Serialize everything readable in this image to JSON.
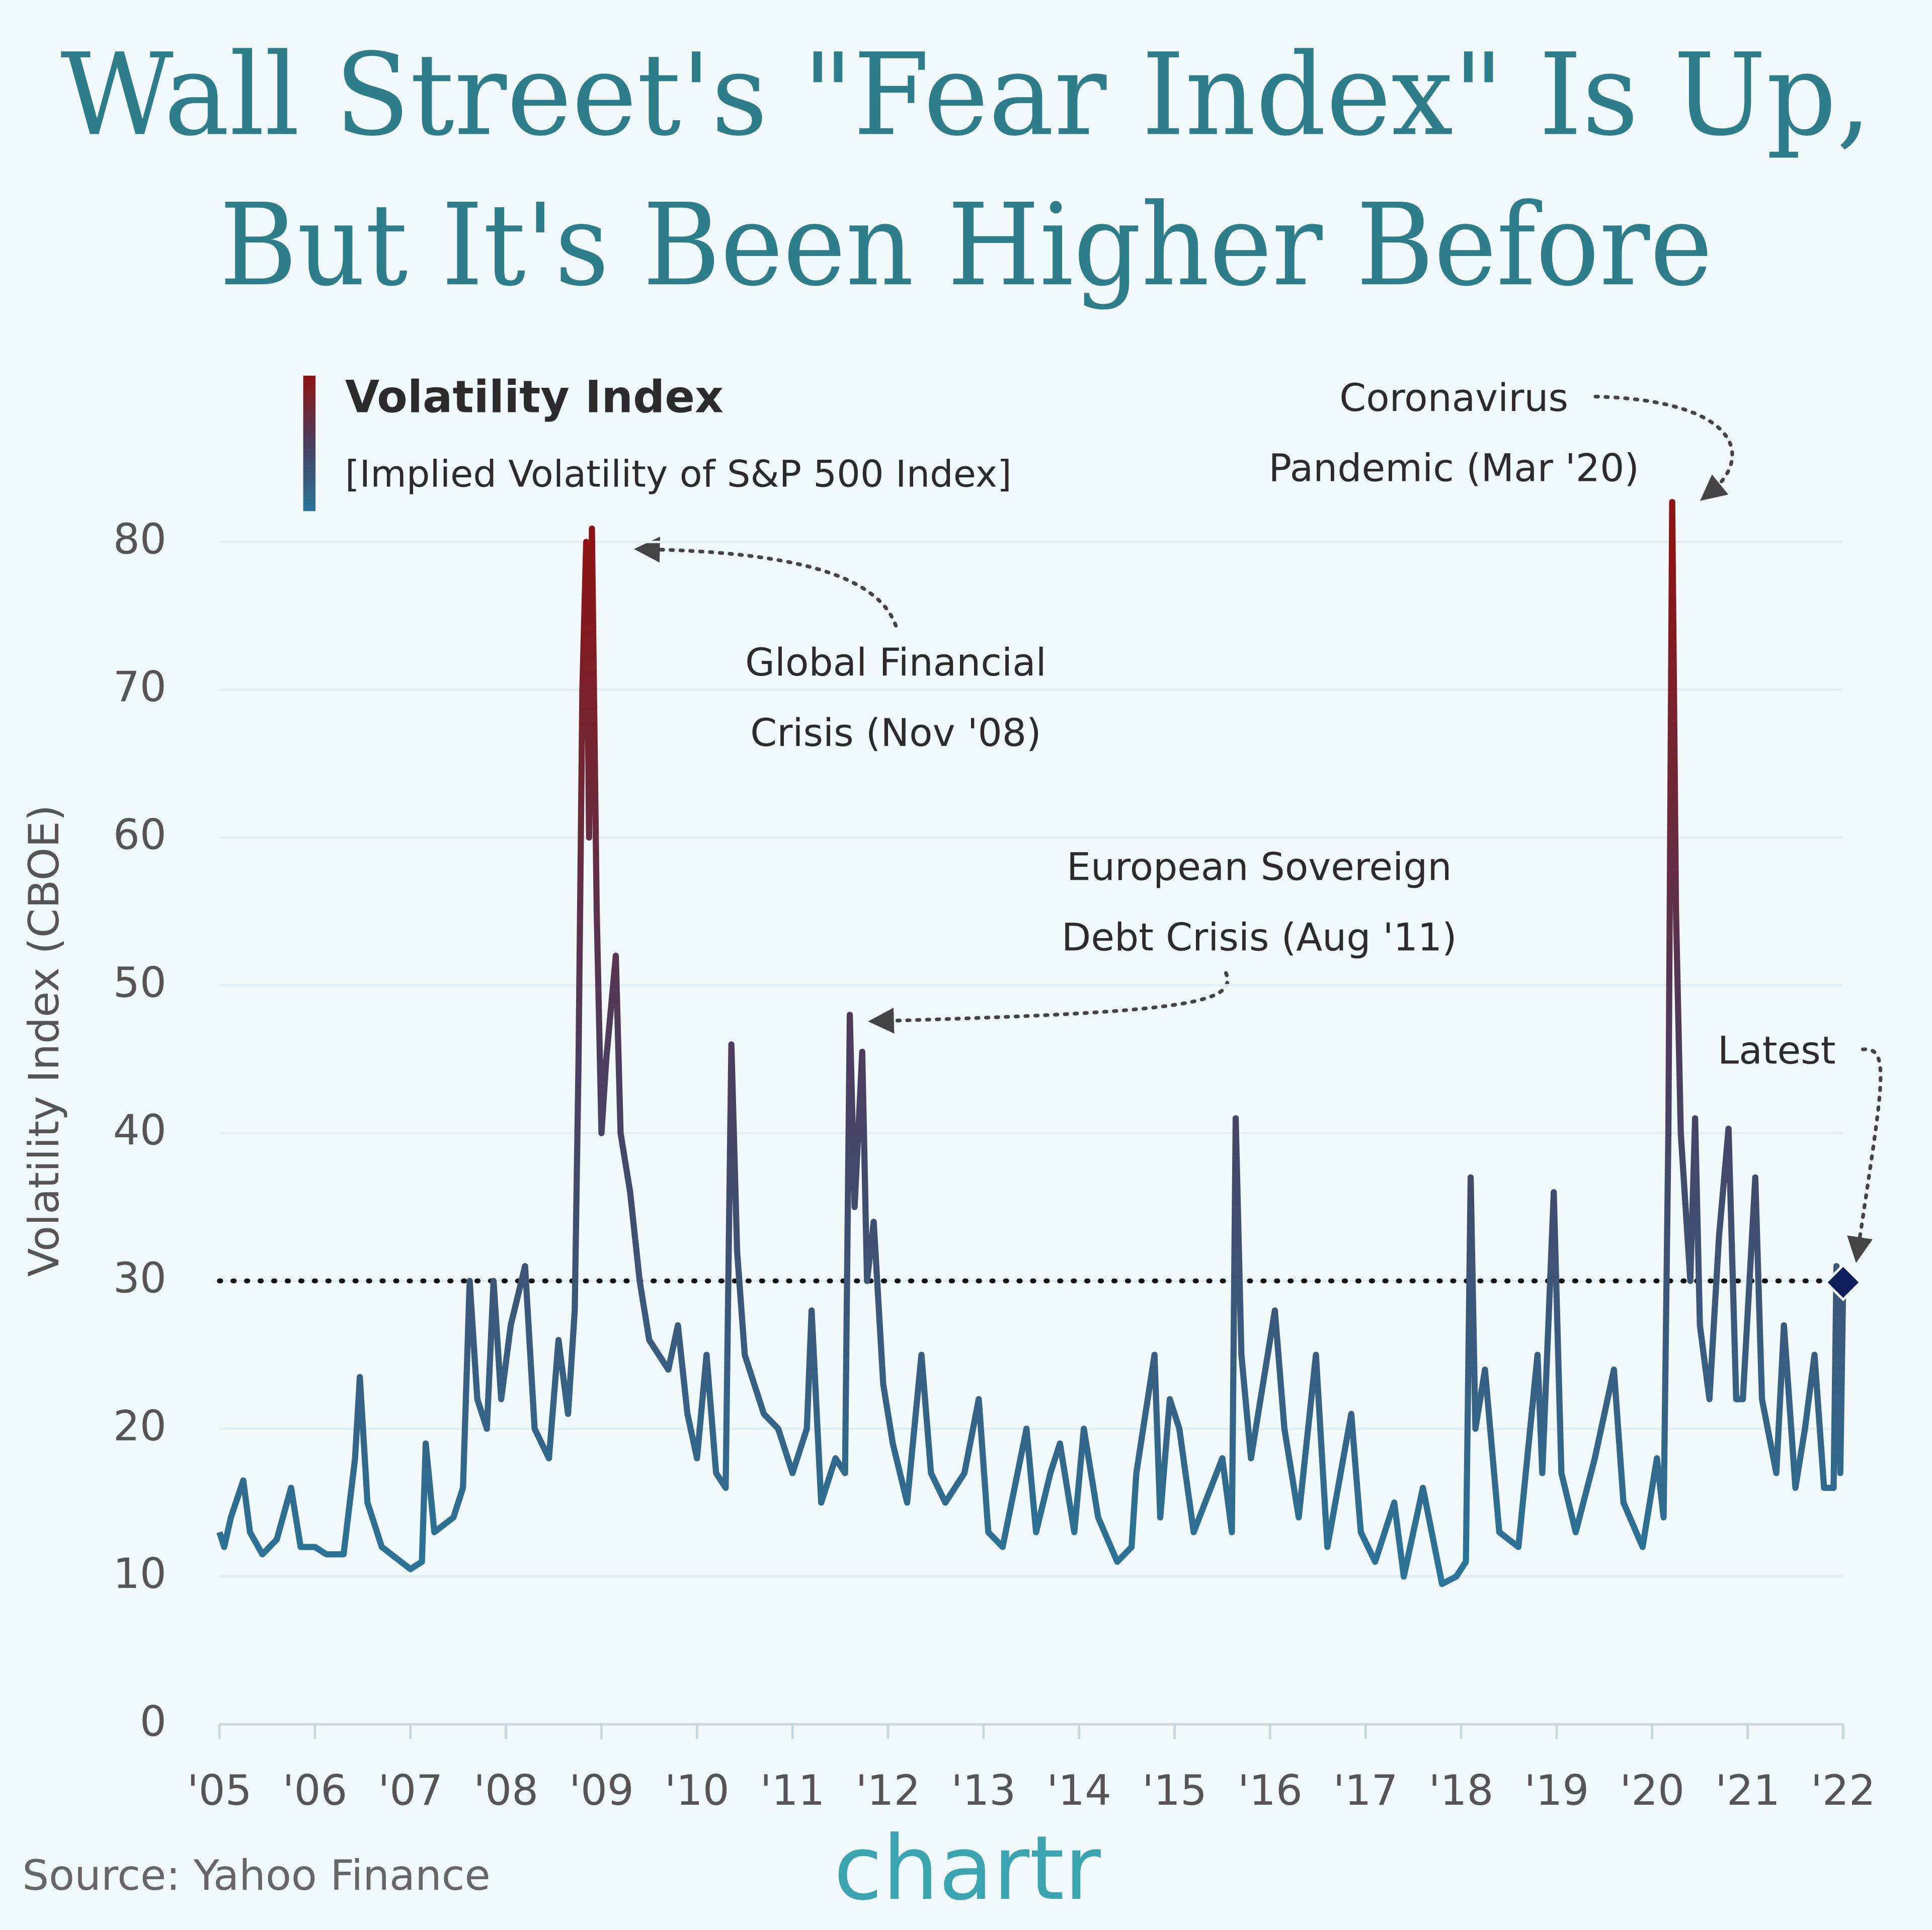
{
  "chart_data": {
    "type": "line",
    "title": [
      "Wall Street's \"Fear Index\" Is Up,",
      "But It's Been Higher Before"
    ],
    "y_label": "Volatility Index (CBOE)",
    "legend_subtitle": "[Implied Volatility of S&P 500 Index]",
    "source": "Source: Yahoo Finance",
    "logo": "chartr",
    "gradient_colors": [
      "#8e1414",
      "#4b3d5e",
      "#2a7599"
    ],
    "reference_line": 30,
    "latest": {
      "x": 2022.0,
      "value": 29.9,
      "color": "#0f1f5c"
    },
    "annotations": [
      {
        "lines": [
          "Global Financial",
          "Crisis (Nov '08)"
        ]
      },
      {
        "lines": [
          "Coronavirus",
          "Pandemic (Mar '20)"
        ]
      },
      {
        "lines": [
          "European Sovereign",
          "Debt Crisis (Aug '11)"
        ]
      },
      {
        "lines": [
          "Latest"
        ]
      }
    ],
    "xlim": [
      2005,
      2022
    ],
    "xticks": [
      {
        "value": 2005,
        "label": "'05"
      },
      {
        "value": 2006,
        "label": "'06"
      },
      {
        "value": 2007,
        "label": "'07"
      },
      {
        "value": 2008,
        "label": "'08"
      },
      {
        "value": 2009,
        "label": "'09"
      },
      {
        "value": 2010,
        "label": "'10"
      },
      {
        "value": 2011,
        "label": "'11"
      },
      {
        "value": 2012,
        "label": "'12"
      },
      {
        "value": 2013,
        "label": "'13"
      },
      {
        "value": 2014,
        "label": "'14"
      },
      {
        "value": 2015,
        "label": "'15"
      },
      {
        "value": 2016,
        "label": "'16"
      },
      {
        "value": 2017,
        "label": "'17"
      },
      {
        "value": 2018,
        "label": "'18"
      },
      {
        "value": 2019,
        "label": "'19"
      },
      {
        "value": 2020,
        "label": "'20"
      },
      {
        "value": 2021,
        "label": "'21"
      },
      {
        "value": 2022,
        "label": "'22"
      }
    ],
    "ylim": [
      0,
      80
    ],
    "yticks": [
      0,
      10,
      20,
      30,
      40,
      50,
      60,
      70,
      80
    ],
    "grid": true,
    "x": [
      2005.0,
      2005.05,
      2005.12,
      2005.25,
      2005.32,
      2005.45,
      2005.6,
      2005.75,
      2005.85,
      2006.0,
      2006.12,
      2006.3,
      2006.42,
      2006.47,
      2006.55,
      2006.7,
      2006.9,
      2007.0,
      2007.12,
      2007.16,
      2007.25,
      2007.45,
      2007.55,
      2007.62,
      2007.7,
      2007.8,
      2007.87,
      2007.95,
      2008.05,
      2008.2,
      2008.3,
      2008.45,
      2008.55,
      2008.65,
      2008.72,
      2008.76,
      2008.8,
      2008.84,
      2008.87,
      2008.9,
      2008.95,
      2009.0,
      2009.05,
      2009.15,
      2009.2,
      2009.3,
      2009.4,
      2009.5,
      2009.6,
      2009.7,
      2009.8,
      2009.9,
      2010.0,
      2010.1,
      2010.2,
      2010.3,
      2010.36,
      2010.42,
      2010.5,
      2010.6,
      2010.7,
      2010.85,
      2011.0,
      2011.15,
      2011.2,
      2011.3,
      2011.45,
      2011.55,
      2011.6,
      2011.65,
      2011.73,
      2011.78,
      2011.85,
      2011.95,
      2012.05,
      2012.2,
      2012.35,
      2012.45,
      2012.6,
      2012.8,
      2012.95,
      2013.05,
      2013.2,
      2013.45,
      2013.55,
      2013.7,
      2013.8,
      2013.95,
      2014.05,
      2014.2,
      2014.4,
      2014.55,
      2014.6,
      2014.79,
      2014.85,
      2014.95,
      2015.05,
      2015.2,
      2015.5,
      2015.6,
      2015.64,
      2015.7,
      2015.8,
      2015.95,
      2016.05,
      2016.15,
      2016.3,
      2016.48,
      2016.6,
      2016.85,
      2016.95,
      2017.1,
      2017.3,
      2017.4,
      2017.6,
      2017.8,
      2017.95,
      2018.05,
      2018.1,
      2018.15,
      2018.25,
      2018.4,
      2018.6,
      2018.8,
      2018.85,
      2018.97,
      2019.05,
      2019.2,
      2019.4,
      2019.6,
      2019.7,
      2019.9,
      2020.05,
      2020.12,
      2020.17,
      2020.21,
      2020.25,
      2020.3,
      2020.4,
      2020.45,
      2020.5,
      2020.6,
      2020.7,
      2020.8,
      2020.88,
      2020.95,
      2021.08,
      2021.15,
      2021.3,
      2021.38,
      2021.5,
      2021.6,
      2021.7,
      2021.8,
      2021.9,
      2021.93,
      2021.97,
      2022.0
    ],
    "series": [
      {
        "name": "Volatility Index",
        "values": [
          13,
          12,
          14,
          16.5,
          13,
          11.5,
          12.5,
          16,
          12,
          12,
          11.5,
          11.5,
          18,
          23.5,
          15,
          12,
          11,
          10.5,
          11,
          19,
          13,
          14,
          16,
          30,
          22,
          20,
          30,
          22,
          27,
          31,
          20,
          18,
          26,
          21,
          28,
          45,
          70,
          80,
          60,
          80.9,
          55,
          40,
          45,
          52,
          40,
          36,
          30,
          26,
          25,
          24,
          27,
          21,
          18,
          25,
          17,
          16,
          46,
          32,
          25,
          23,
          21,
          20,
          17,
          20,
          28,
          15,
          18,
          17,
          48,
          35,
          45.5,
          30,
          34,
          23,
          19,
          15,
          25,
          17,
          15,
          17,
          22,
          13,
          12,
          20,
          13,
          17,
          19,
          13,
          20,
          14,
          11,
          12,
          17,
          25,
          14,
          22,
          20,
          13,
          18,
          13,
          41,
          25,
          18,
          24,
          28,
          20,
          14,
          25,
          12,
          21,
          13,
          11,
          15,
          10,
          16,
          9.5,
          10,
          11,
          37,
          20,
          24,
          13,
          12,
          25,
          17,
          36,
          17,
          13,
          18,
          24,
          15,
          12,
          18,
          14,
          40,
          82.7,
          55,
          40,
          30,
          41,
          27,
          22,
          33,
          40.3,
          22,
          22,
          37,
          22,
          17,
          27,
          16,
          20,
          25,
          16,
          16,
          31,
          17,
          29.9
        ]
      }
    ]
  }
}
